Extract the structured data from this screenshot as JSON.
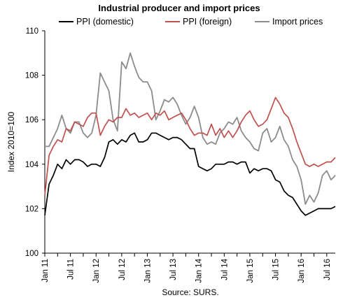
{
  "chart_data": {
    "type": "line",
    "title": "Industrial producer and import prices",
    "ylabel": "Index 2010=100",
    "xlabel": "",
    "source": "Source: SURS.",
    "ylim": [
      100,
      110
    ],
    "yticks": [
      "100",
      "102",
      "104",
      "106",
      "108",
      "110"
    ],
    "ytick_values": [
      100,
      102,
      104,
      106,
      108,
      110
    ],
    "xticks": [
      "Jan 11",
      "Jul 11",
      "Jan 12",
      "Jul 12",
      "Jan 13",
      "Jul 13",
      "Jan 14",
      "Jul 14",
      "Jan 15",
      "Jul 15",
      "Jan 16",
      "Jul 16"
    ],
    "grid": false,
    "legend_position": "top",
    "colors": {
      "domestic": "#000000",
      "foreign": "#c0504d",
      "import": "#8c8c8c"
    },
    "x": [
      "2011-01",
      "2011-02",
      "2011-03",
      "2011-04",
      "2011-05",
      "2011-06",
      "2011-07",
      "2011-08",
      "2011-09",
      "2011-10",
      "2011-11",
      "2011-12",
      "2012-01",
      "2012-02",
      "2012-03",
      "2012-04",
      "2012-05",
      "2012-06",
      "2012-07",
      "2012-08",
      "2012-09",
      "2012-10",
      "2012-11",
      "2012-12",
      "2013-01",
      "2013-02",
      "2013-03",
      "2013-04",
      "2013-05",
      "2013-06",
      "2013-07",
      "2013-08",
      "2013-09",
      "2013-10",
      "2013-11",
      "2013-12",
      "2014-01",
      "2014-02",
      "2014-03",
      "2014-04",
      "2014-05",
      "2014-06",
      "2014-07",
      "2014-08",
      "2014-09",
      "2014-10",
      "2014-11",
      "2014-12",
      "2015-01",
      "2015-02",
      "2015-03",
      "2015-04",
      "2015-05",
      "2015-06",
      "2015-07",
      "2015-08",
      "2015-09",
      "2015-10",
      "2015-11",
      "2015-12",
      "2016-01",
      "2016-02",
      "2016-03",
      "2016-04",
      "2016-05",
      "2016-06",
      "2016-07",
      "2016-08",
      "2016-09"
    ],
    "series": [
      {
        "name": "PPI (domestic)",
        "key": "domestic",
        "values": [
          101.7,
          103.1,
          103.5,
          104.0,
          103.8,
          104.2,
          104.0,
          104.2,
          104.2,
          104.1,
          103.9,
          104.0,
          104.0,
          103.9,
          104.3,
          105.0,
          105.1,
          104.9,
          105.1,
          105.0,
          105.3,
          105.4,
          105.0,
          105.0,
          105.1,
          105.4,
          105.4,
          105.3,
          105.2,
          105.1,
          105.2,
          105.2,
          105.1,
          104.9,
          104.7,
          104.7,
          103.9,
          103.8,
          103.7,
          103.8,
          104.0,
          104.0,
          104.0,
          104.1,
          104.1,
          104.0,
          104.1,
          104.1,
          103.6,
          103.8,
          103.7,
          103.8,
          103.8,
          103.7,
          103.3,
          103.2,
          102.8,
          102.6,
          102.5,
          102.2,
          101.9,
          101.7,
          101.8,
          101.9,
          102.0,
          102.0,
          102.0,
          102.0,
          102.1
        ]
      },
      {
        "name": "PPI (foreign)",
        "key": "foreign",
        "values": [
          102.6,
          104.4,
          104.8,
          105.1,
          105.0,
          105.6,
          105.5,
          105.9,
          105.8,
          105.7,
          106.1,
          106.3,
          106.3,
          105.3,
          105.7,
          106.0,
          105.9,
          106.1,
          106.1,
          106.5,
          106.2,
          106.3,
          106.1,
          106.2,
          106.3,
          106.0,
          106.3,
          106.2,
          106.4,
          106.0,
          106.1,
          106.2,
          106.3,
          106.0,
          105.6,
          105.3,
          105.4,
          105.4,
          105.3,
          105.8,
          105.3,
          105.6,
          105.2,
          105.5,
          105.2,
          105.5,
          105.9,
          106.2,
          106.4,
          106.0,
          105.7,
          105.8,
          106.0,
          106.5,
          107.0,
          106.7,
          106.3,
          106.1,
          105.6,
          105.0,
          104.5,
          104.0,
          103.9,
          104.0,
          103.9,
          104.0,
          104.1,
          104.1,
          104.3
        ]
      },
      {
        "name": "Import prices",
        "key": "import",
        "values": [
          104.8,
          104.8,
          105.2,
          105.6,
          106.2,
          105.6,
          105.4,
          105.9,
          105.9,
          105.4,
          105.2,
          105.4,
          106.2,
          108.1,
          107.7,
          107.3,
          106.0,
          105.5,
          108.6,
          108.3,
          109.0,
          108.4,
          107.9,
          107.7,
          107.7,
          107.3,
          106.0,
          106.4,
          106.9,
          106.8,
          107.0,
          106.7,
          106.2,
          105.8,
          106.1,
          106.6,
          106.1,
          105.2,
          104.9,
          105.0,
          104.9,
          105.4,
          105.6,
          105.9,
          105.8,
          106.1,
          105.5,
          105.2,
          105.0,
          104.7,
          104.6,
          105.4,
          105.6,
          105.0,
          105.2,
          105.7,
          105.1,
          104.8,
          104.2,
          103.9,
          103.3,
          102.2,
          102.6,
          102.3,
          102.7,
          103.5,
          103.7,
          103.3,
          103.5
        ]
      }
    ]
  }
}
